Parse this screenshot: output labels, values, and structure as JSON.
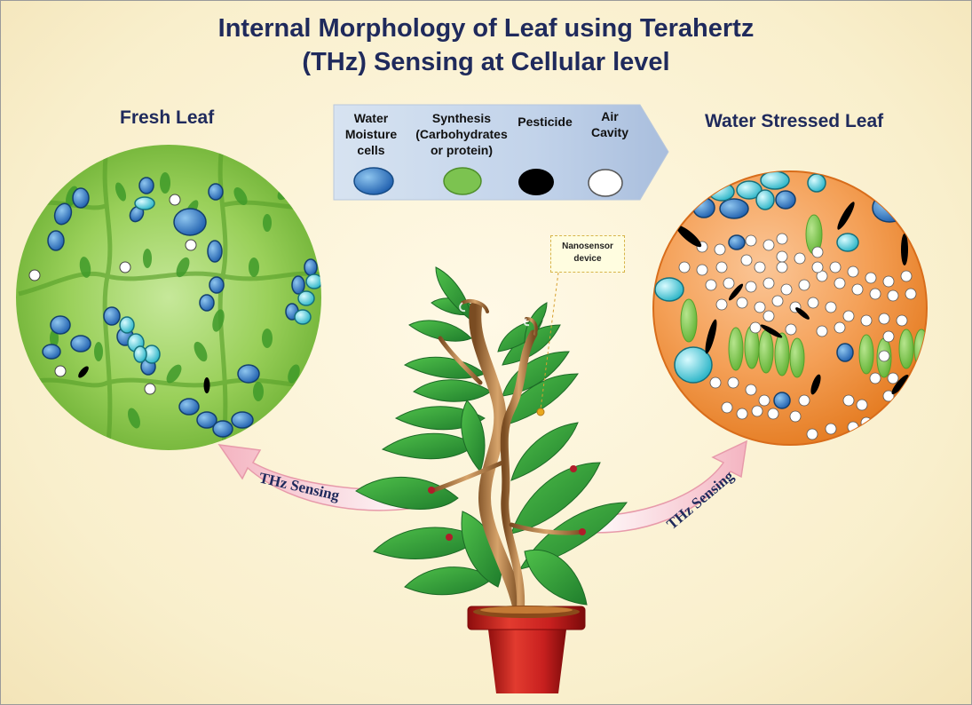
{
  "title": {
    "line1": "Internal Morphology of Leaf using Terahertz",
    "line2": "(THz) Sensing at Cellular level"
  },
  "left_panel": {
    "heading": "Fresh Leaf"
  },
  "right_panel": {
    "heading": "Water Stressed Leaf"
  },
  "legend": {
    "items": [
      {
        "lines": [
          "Water",
          "Moisture",
          "cells"
        ],
        "color": "#2f7fc8"
      },
      {
        "lines": [
          "Synthesis",
          "(Carbohydrates",
          "or protein)"
        ],
        "color": "#7cc350"
      },
      {
        "lines": [
          "Pesticide"
        ],
        "color": "#000000"
      },
      {
        "lines": [
          "Air",
          "Cavity"
        ],
        "color": "#ffffff"
      }
    ]
  },
  "sensor": {
    "label_line1": "Nanosensor",
    "label_line2": "device"
  },
  "arrows": {
    "left_label": "THz Sensing",
    "right_label": "THz Sensing"
  },
  "colors": {
    "title": "#1f2a5c",
    "fresh_bg": "#8cc63f",
    "stressed_bg": "#f08a2e",
    "pot": "#c8201f",
    "leaf": "#2e9a3a",
    "stem": "#9a6a3a",
    "arrow_fill": "#f6c6cf"
  }
}
